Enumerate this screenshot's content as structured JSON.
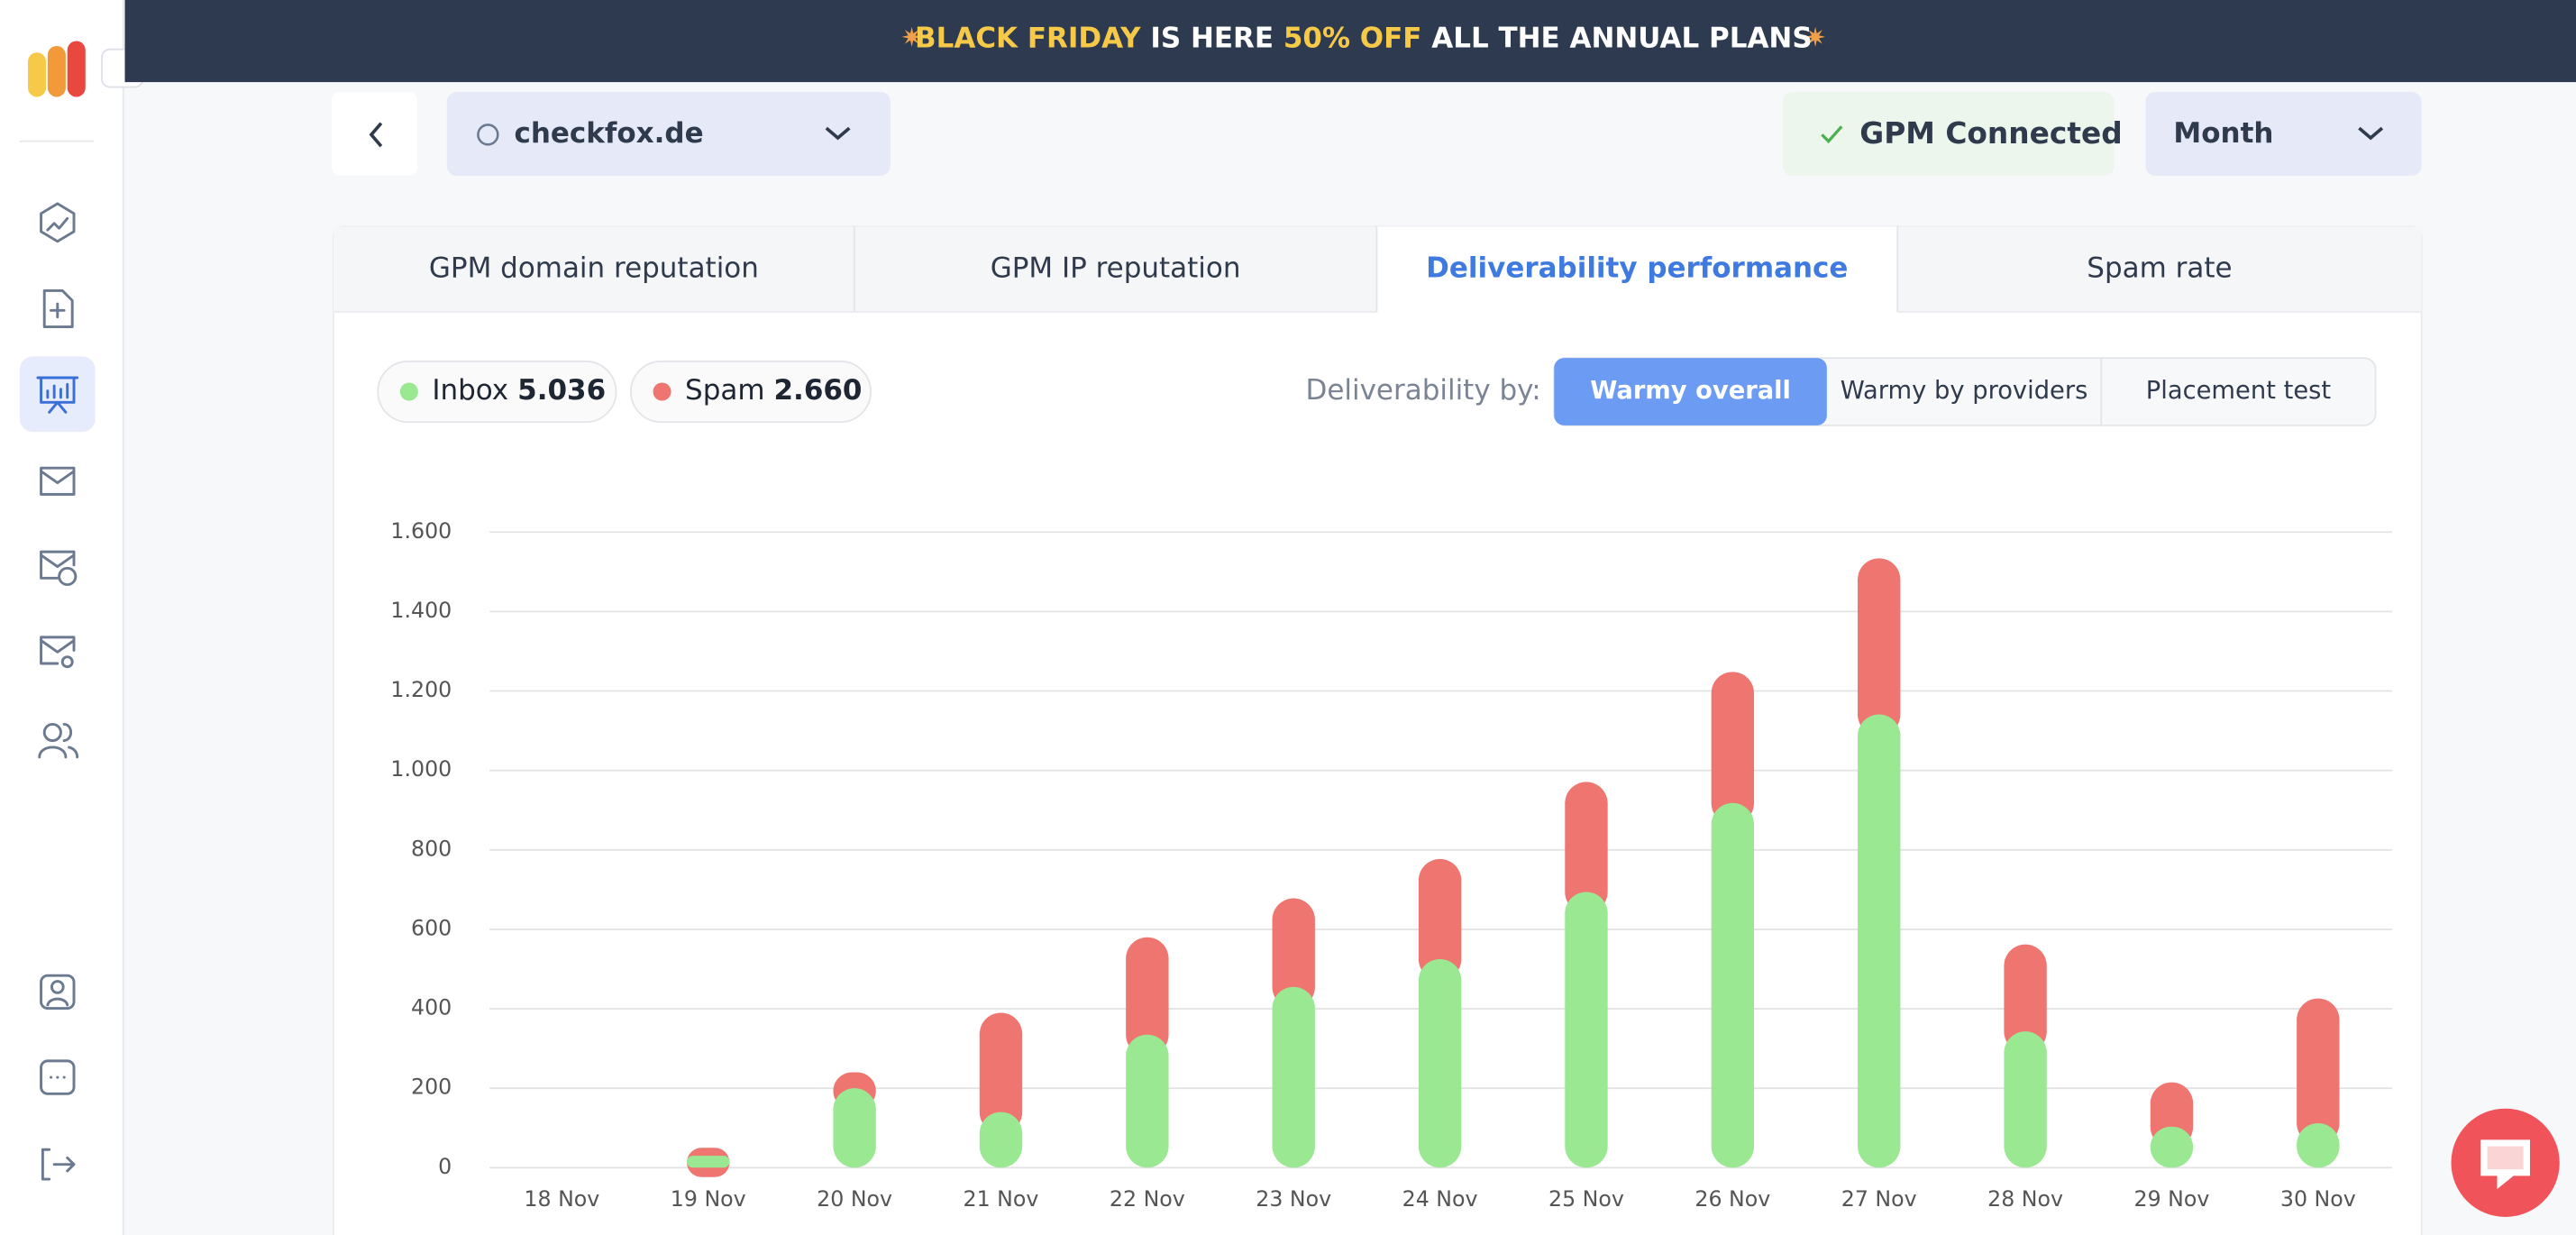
{
  "banner": {
    "highlight1": "BLACK FRIDAY",
    "text1": "IS HERE",
    "highlight2": "50% OFF",
    "text2": "ALL THE ANNUAL PLANS"
  },
  "toolbar": {
    "domain": "checkfox.de",
    "status": "GPM Connected",
    "period": "Month"
  },
  "tabs": [
    "GPM domain reputation",
    "GPM IP reputation",
    "Deliverability performance",
    "Spam rate"
  ],
  "summary": {
    "inbox_label": "Inbox",
    "inbox_value": "5.036",
    "spam_label": "Spam",
    "spam_value": "2.660"
  },
  "filter": {
    "label": "Deliverability by:",
    "options": [
      "Warmy overall",
      "Warmy by providers",
      "Placement test"
    ]
  },
  "chart_data": {
    "type": "stacked_bar",
    "categories": [
      "18 Nov",
      "19 Nov",
      "20 Nov",
      "21 Nov",
      "22 Nov",
      "23 Nov",
      "24 Nov",
      "25 Nov",
      "26 Nov",
      "27 Nov",
      "28 Nov",
      "29 Nov",
      "30 Nov"
    ],
    "series": [
      {
        "name": "Inbox",
        "color": "#9be893",
        "values": [
          0,
          30,
          200,
          140,
          335,
          455,
          525,
          694,
          918,
          1141,
          343,
          103,
          112
        ]
      },
      {
        "name": "Spam",
        "color": "#ee7570",
        "values": [
          0,
          20,
          40,
          250,
          245,
          223,
          252,
          277,
          330,
          393,
          219,
          112,
          314
        ]
      }
    ],
    "ylim": [
      0,
      1600
    ],
    "yticks": [
      0,
      200,
      400,
      600,
      800,
      {
        "value": 1000,
        "label": "1.000"
      },
      {
        "value": 1200,
        "label": "1.200"
      },
      {
        "value": 1400,
        "label": "1.400"
      },
      {
        "value": 1600,
        "label": "1.600"
      }
    ],
    "grid": true
  }
}
